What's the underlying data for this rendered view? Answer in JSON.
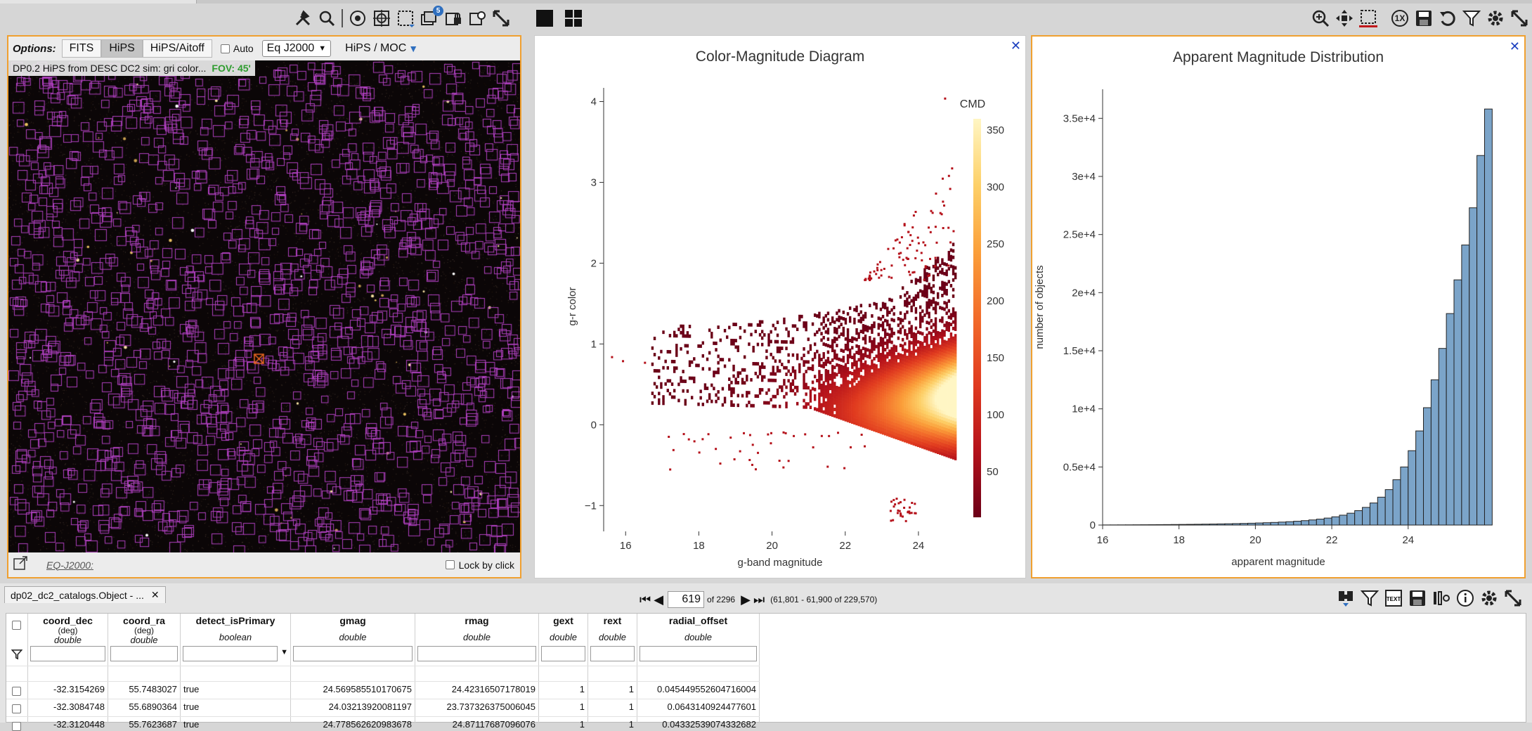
{
  "image_toolbar": {
    "icons": [
      "tools-icon",
      "search-icon",
      "layers-icon",
      "crosshair-icon",
      "select-area-icon",
      "catalog-layers-icon",
      "lock-icon",
      "overlay-icon",
      "expand-icon"
    ],
    "layers_badge": "5"
  },
  "chart_toolbar": {
    "left_icons": [
      "single-view-icon",
      "grid-view-icon"
    ],
    "right_icons": [
      "zoom-in-icon",
      "pan-icon",
      "select-box-icon",
      "reset-zoom-icon",
      "save-icon",
      "restore-icon",
      "filter-icon",
      "settings-icon",
      "expand-icon"
    ],
    "reset_label": "1X"
  },
  "image_panel": {
    "options_label": "Options:",
    "buttons": [
      "FITS",
      "HiPS",
      "HiPS/Aitoff"
    ],
    "active_button": "HiPS",
    "auto_label": "Auto",
    "coord_select": "Eq J2000",
    "hips_moc_label": "HiPS / MOC",
    "title": "DP0.2 HiPS from DESC DC2 sim: gri color...",
    "fov": "FOV: 45'",
    "footer_coord": "EQ-J2000:",
    "lock_label": "Lock by click",
    "accent_color": "#f0a030",
    "overlay_color": "#b040c0"
  },
  "cmd_chart": {
    "chart_data": {
      "type": "heatmap",
      "title": "Color-Magnitude Diagram",
      "xlabel": "g-band magnitude",
      "ylabel": "g-r color",
      "xlim": [
        15.4,
        25.0
      ],
      "ylim": [
        -1.25,
        4.1
      ],
      "xticks": [
        "16",
        "18",
        "20",
        "22",
        "24"
      ],
      "yticks": [
        "−1",
        "0",
        "1",
        "2",
        "3",
        "4"
      ],
      "colorbar": {
        "title": "CMD",
        "ticks": [
          "50",
          "100",
          "150",
          "200",
          "250",
          "300",
          "350"
        ],
        "range": [
          10,
          360
        ],
        "colors": [
          "#6b0018",
          "#b5121b",
          "#e03a1f",
          "#f26b2a",
          "#fb9f3a",
          "#fdd068",
          "#fff6c4"
        ]
      }
    }
  },
  "hist_chart": {
    "chart_data": {
      "type": "bar",
      "title": "Apparent Magnitude Distribution",
      "xlabel": "apparent magnitude",
      "ylabel": "number of objects",
      "xlim": [
        16,
        25.2
      ],
      "ylim": [
        0,
        37500
      ],
      "xticks": [
        "16",
        "18",
        "20",
        "22",
        "24"
      ],
      "yticks": [
        "0",
        "0.5e+4",
        "1e+4",
        "1.5e+4",
        "2e+4",
        "2.5e+4",
        "3e+4",
        "3.5e+4"
      ],
      "bin_width": 0.2,
      "bin_start": 16.0,
      "values": [
        10,
        12,
        15,
        18,
        22,
        26,
        30,
        35,
        40,
        46,
        52,
        60,
        68,
        78,
        88,
        100,
        112,
        126,
        140,
        158,
        178,
        200,
        225,
        255,
        290,
        330,
        380,
        440,
        510,
        600,
        710,
        850,
        1020,
        1240,
        1520,
        1900,
        2400,
        3050,
        3900,
        5000,
        6400,
        8100,
        10100,
        12500,
        15200,
        18200,
        21100,
        24100,
        27300,
        31800,
        35800
      ],
      "bar_color": "#7ba4c9"
    }
  },
  "table": {
    "tab_label": "dp02_dc2_catalogs.Object - ...",
    "page_current": "619",
    "page_of": "of 2296",
    "range_label": "(61,801 - 61,900 of 229,570)",
    "tools": [
      "download-icon",
      "filter-icon",
      "text-view-icon",
      "save-icon",
      "column-settings-icon",
      "info-icon",
      "settings-icon",
      "expand-icon"
    ],
    "columns": [
      {
        "name": "coord_dec",
        "unit": "(deg)",
        "type": "double"
      },
      {
        "name": "coord_ra",
        "unit": "(deg)",
        "type": "double"
      },
      {
        "name": "detect_isPrimary",
        "unit": "",
        "type": "boolean"
      },
      {
        "name": "gmag",
        "unit": "",
        "type": "double"
      },
      {
        "name": "rmag",
        "unit": "",
        "type": "double"
      },
      {
        "name": "gext",
        "unit": "",
        "type": "double"
      },
      {
        "name": "rext",
        "unit": "",
        "type": "double"
      },
      {
        "name": "radial_offset",
        "unit": "",
        "type": "double"
      }
    ],
    "rows": [
      [
        "-32.3154269",
        "55.7483027",
        "true",
        "24.569585510170675",
        "24.42316507178019",
        "1",
        "1",
        "0.045449552604716004"
      ],
      [
        "-32.3084748",
        "55.6890364",
        "true",
        "24.03213920081197",
        "23.737326375006045",
        "1",
        "1",
        "0.0643140924477601"
      ],
      [
        "-32.3120448",
        "55.7623687",
        "true",
        "24.778562620983678",
        "24.87117687096076",
        "1",
        "1",
        "0.04332539074332682"
      ]
    ]
  }
}
